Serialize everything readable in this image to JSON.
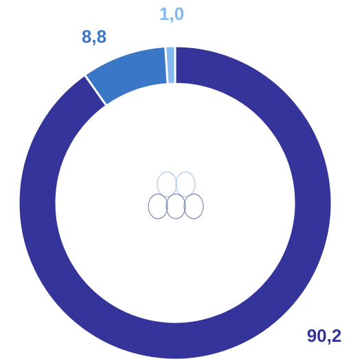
{
  "chart_data": {
    "type": "donut",
    "categories": [
      null,
      null,
      null
    ],
    "values": [
      90.2,
      8.8,
      1.0
    ],
    "value_labels": [
      "90,2",
      "8,8",
      "1,0"
    ],
    "colors": [
      "#35349a",
      "#3a77c6",
      "#84b8f0"
    ]
  }
}
